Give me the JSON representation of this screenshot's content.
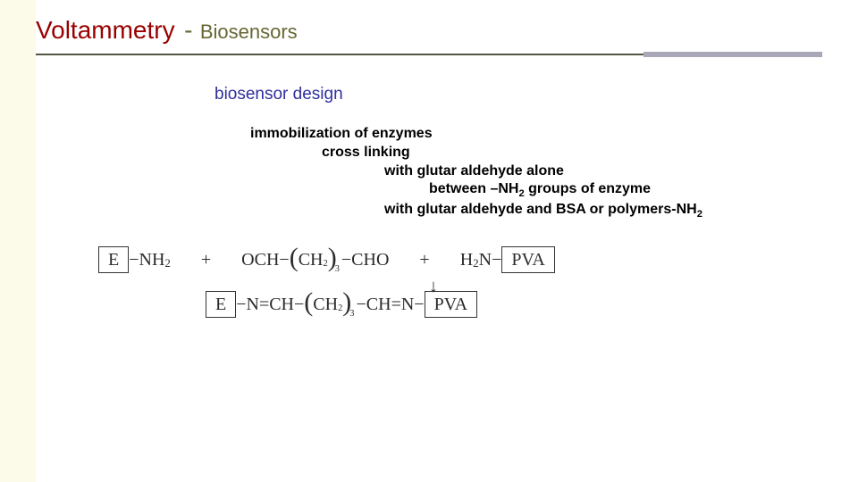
{
  "colors": {
    "slide_bg": "#fcfae9",
    "content_bg": "#ffffff",
    "title_main": "#990000",
    "title_sub": "#666633",
    "rule_thin": "#555544",
    "rule_thick": "#a8a8b8",
    "section_heading": "#2f2f9e",
    "body_text": "#000000",
    "chem_text": "#2b2b2b",
    "box_border": "#333333"
  },
  "typography": {
    "title_main_size": 28,
    "title_sub_size": 22,
    "section_size": 19,
    "body_size": 16,
    "chem_size": 20,
    "body_weight": "bold",
    "chem_font": "Times New Roman"
  },
  "title": {
    "main": "Voltammetry",
    "separator": "-",
    "sub": "Biosensors"
  },
  "section_heading": "biosensor design",
  "body": {
    "l1": "immobilization of enzymes",
    "l2": "cross linking",
    "l3": "with glutar aldehyde alone",
    "l4_a": "between –NH",
    "l4_b": " groups of enzyme",
    "l4_sub": "2",
    "l5_a": "with glutar aldehyde and BSA or polymers-NH",
    "l5_sub": "2"
  },
  "chem": {
    "row1": {
      "box1": "E",
      "seg1a": "−NH",
      "seg1a_sub": "2",
      "plus1": "+",
      "seg2a": "OCH−",
      "grp_open": "(",
      "grp_inner_a": "CH",
      "grp_inner_sub": "2",
      "grp_close": ")",
      "grp_outer_sub": "3",
      "seg2b": "−CHO",
      "plus2": "+",
      "seg3a": "H",
      "seg3a_sub": "2",
      "seg3b": "N−",
      "box2": "PVA"
    },
    "arrow": "↓",
    "row2": {
      "box1": "E",
      "seg1": "−N=CH−",
      "grp_open": "(",
      "grp_inner_a": "CH",
      "grp_inner_sub": "2",
      "grp_close": ")",
      "grp_outer_sub": "3",
      "seg2": "−CH=N−",
      "box2": "PVA"
    }
  }
}
